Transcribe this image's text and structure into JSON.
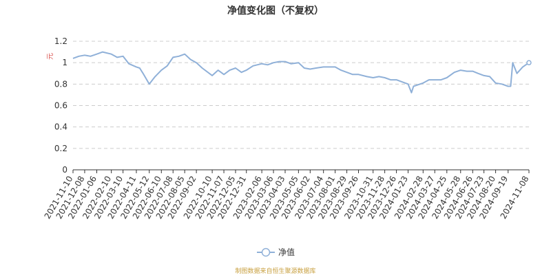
{
  "chart_data": {
    "type": "line",
    "title": "净值变化图（不复权）",
    "ylabel": "元",
    "ylim": [
      0,
      1.2
    ],
    "yticks": [
      0,
      0.2,
      0.4,
      0.6,
      0.8,
      1,
      1.2
    ],
    "yticklabels": [
      "0",
      "0.2",
      "0.4",
      "0.6",
      "0.8",
      "1",
      "1.2"
    ],
    "grid": true,
    "legend_position": "bottom-center",
    "line_color": "#8fb0d8",
    "x_ticks": [
      "2021-11-10",
      "2021-12-08",
      "2022-01-06",
      "2022-02-10",
      "2022-03-10",
      "2022-04-11",
      "2022-05-12",
      "2022-06-10",
      "2022-07-08",
      "2022-08-05",
      "2022-09-02",
      "2022-10-10",
      "2022-11-07",
      "2022-12-05",
      "2022-12-31",
      "2023-02-06",
      "2023-03-06",
      "2023-04-03",
      "2023-05-05",
      "2023-06-02",
      "2023-07-04",
      "2023-08-01",
      "2023-08-29",
      "2023-09-26",
      "2023-10-31",
      "2023-11-28",
      "2023-12-26",
      "2024-01-23",
      "2024-02-28",
      "2024-03-27",
      "2024-04-25",
      "2024-05-28",
      "2024-06-26",
      "2024-07-23",
      "2024-08-20",
      "2024-09-19",
      "2024-11-08"
    ],
    "series": [
      {
        "name": "净值",
        "x": [
          "2021-11-10",
          "2021-11-24",
          "2021-12-08",
          "2021-12-22",
          "2022-01-06",
          "2022-01-20",
          "2022-02-10",
          "2022-02-24",
          "2022-03-10",
          "2022-03-24",
          "2022-04-11",
          "2022-04-19",
          "2022-04-27",
          "2022-05-12",
          "2022-05-26",
          "2022-06-10",
          "2022-06-24",
          "2022-07-08",
          "2022-07-22",
          "2022-08-05",
          "2022-08-19",
          "2022-09-02",
          "2022-09-16",
          "2022-10-10",
          "2022-10-24",
          "2022-11-07",
          "2022-11-21",
          "2022-12-05",
          "2022-12-19",
          "2022-12-31",
          "2023-01-16",
          "2023-02-06",
          "2023-02-20",
          "2023-03-06",
          "2023-03-20",
          "2023-04-03",
          "2023-04-17",
          "2023-05-05",
          "2023-05-19",
          "2023-06-02",
          "2023-06-16",
          "2023-07-04",
          "2023-07-18",
          "2023-08-01",
          "2023-08-15",
          "2023-08-29",
          "2023-09-12",
          "2023-09-26",
          "2023-10-16",
          "2023-10-31",
          "2023-11-14",
          "2023-11-28",
          "2023-12-12",
          "2023-12-26",
          "2024-01-09",
          "2024-01-23",
          "2024-01-31",
          "2024-02-05",
          "2024-02-28",
          "2024-03-13",
          "2024-03-27",
          "2024-04-11",
          "2024-04-25",
          "2024-05-13",
          "2024-05-28",
          "2024-06-12",
          "2024-06-26",
          "2024-07-09",
          "2024-07-23",
          "2024-08-06",
          "2024-08-20",
          "2024-09-04",
          "2024-09-19",
          "2024-09-25",
          "2024-09-30",
          "2024-10-10",
          "2024-10-24",
          "2024-11-08"
        ],
        "values": [
          1.04,
          1.06,
          1.07,
          1.06,
          1.08,
          1.1,
          1.08,
          1.05,
          1.06,
          0.99,
          0.96,
          0.95,
          0.9,
          0.8,
          0.87,
          0.93,
          0.97,
          1.05,
          1.06,
          1.08,
          1.03,
          1.0,
          0.95,
          0.88,
          0.93,
          0.89,
          0.93,
          0.95,
          0.91,
          0.93,
          0.97,
          0.99,
          0.98,
          1.0,
          1.01,
          1.01,
          0.99,
          1.0,
          0.95,
          0.94,
          0.95,
          0.96,
          0.96,
          0.96,
          0.93,
          0.91,
          0.89,
          0.89,
          0.87,
          0.86,
          0.87,
          0.86,
          0.84,
          0.84,
          0.82,
          0.8,
          0.72,
          0.78,
          0.81,
          0.84,
          0.84,
          0.84,
          0.86,
          0.91,
          0.93,
          0.92,
          0.92,
          0.9,
          0.88,
          0.87,
          0.81,
          0.8,
          0.78,
          0.78,
          1.0,
          0.9,
          0.96,
          1.0
        ]
      }
    ]
  },
  "legend": {
    "label": "净值"
  },
  "source": "制图数据来自恒生聚源数据库"
}
